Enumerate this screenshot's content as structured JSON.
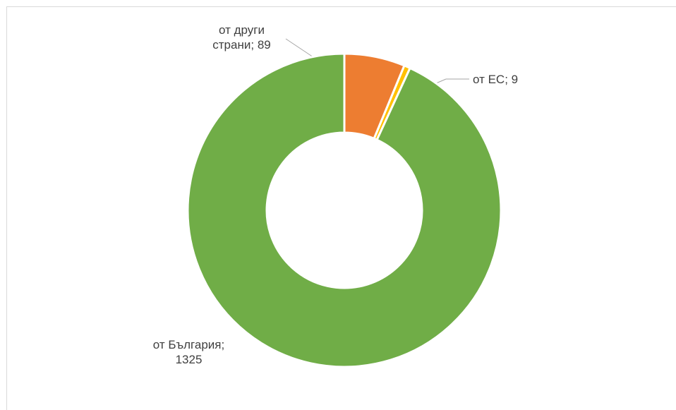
{
  "chart_data": {
    "type": "donut",
    "categories": [
      "от други страни",
      "от ЕС",
      "от България"
    ],
    "values": [
      89,
      9,
      1325
    ],
    "colors": [
      "#ed7d31",
      "#ffc000",
      "#70ad47"
    ],
    "label_separator": "; "
  }
}
